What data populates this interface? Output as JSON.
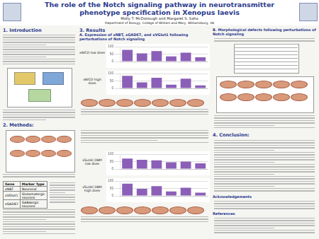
{
  "header": {
    "title": "The role of the Notch signaling pathway in neurotransmitter phenotype specification in Xenopus laevis",
    "authors": "Molly T. McDonough and Margaret S. Saha",
    "affiliation": "Department of Biology, College of William and Mary, Williamsburg, VA"
  },
  "sections": {
    "intro": "1. Introduction",
    "methods": "2. Methods:",
    "results": "3. Results",
    "results_a": "A. Expression of xNBT, xGAD67, and xVGlut1 following perturbations of Notch signaling",
    "results_b": "B. Morphological defects following perturbations of Notch signaling",
    "conclusions": "4. Conclusion:",
    "acknowledgements": "Acknowledgements",
    "references": "References"
  },
  "table": {
    "header": [
      "Gene",
      "Marker Type"
    ],
    "rows": [
      [
        "xNBT",
        "Neuronal"
      ],
      [
        "xVGlut1",
        "Glutamatergic neurons"
      ],
      [
        "xGAD67",
        "GABAergic neurons"
      ]
    ]
  },
  "row_labels": [
    "xNICD low dose",
    "xNICD high dose",
    "xSu(H) DBM low dose",
    "xSu(H) DBM high dose"
  ],
  "chart_data": [
    {
      "type": "bar",
      "categories": [
        null,
        null,
        null,
        null,
        null,
        null
      ],
      "values": [
        78,
        55,
        70,
        35,
        60,
        28
      ],
      "color": "#8b5fb8",
      "ylim": [
        0,
        100
      ],
      "yticks": [
        0,
        50,
        100
      ],
      "grid": true,
      "tick_labels": "y"
    },
    {
      "type": "bar",
      "categories": [
        null,
        null,
        null,
        null,
        null,
        null
      ],
      "values": [
        85,
        40,
        72,
        25,
        65,
        20
      ],
      "color": "#8b5fb8",
      "ylim": [
        0,
        100
      ],
      "yticks": [
        0,
        50,
        100
      ],
      "grid": true,
      "tick_labels": "y"
    },
    {
      "type": "bar",
      "categories": [
        null,
        null,
        null,
        null,
        null,
        null
      ],
      "values": [
        70,
        62,
        58,
        45,
        50,
        38
      ],
      "color": "#8b5fb8",
      "ylim": [
        0,
        100
      ],
      "yticks": [
        0,
        50,
        100
      ],
      "grid": true,
      "tick_labels": "y"
    },
    {
      "type": "bar",
      "categories": [
        null,
        null,
        null,
        null,
        null,
        null
      ],
      "values": [
        82,
        48,
        66,
        30,
        55,
        22
      ],
      "color": "#8b5fb8",
      "ylim": [
        0,
        100
      ],
      "yticks": [
        0,
        50,
        100
      ],
      "grid": true,
      "tick_labels": "y"
    }
  ]
}
